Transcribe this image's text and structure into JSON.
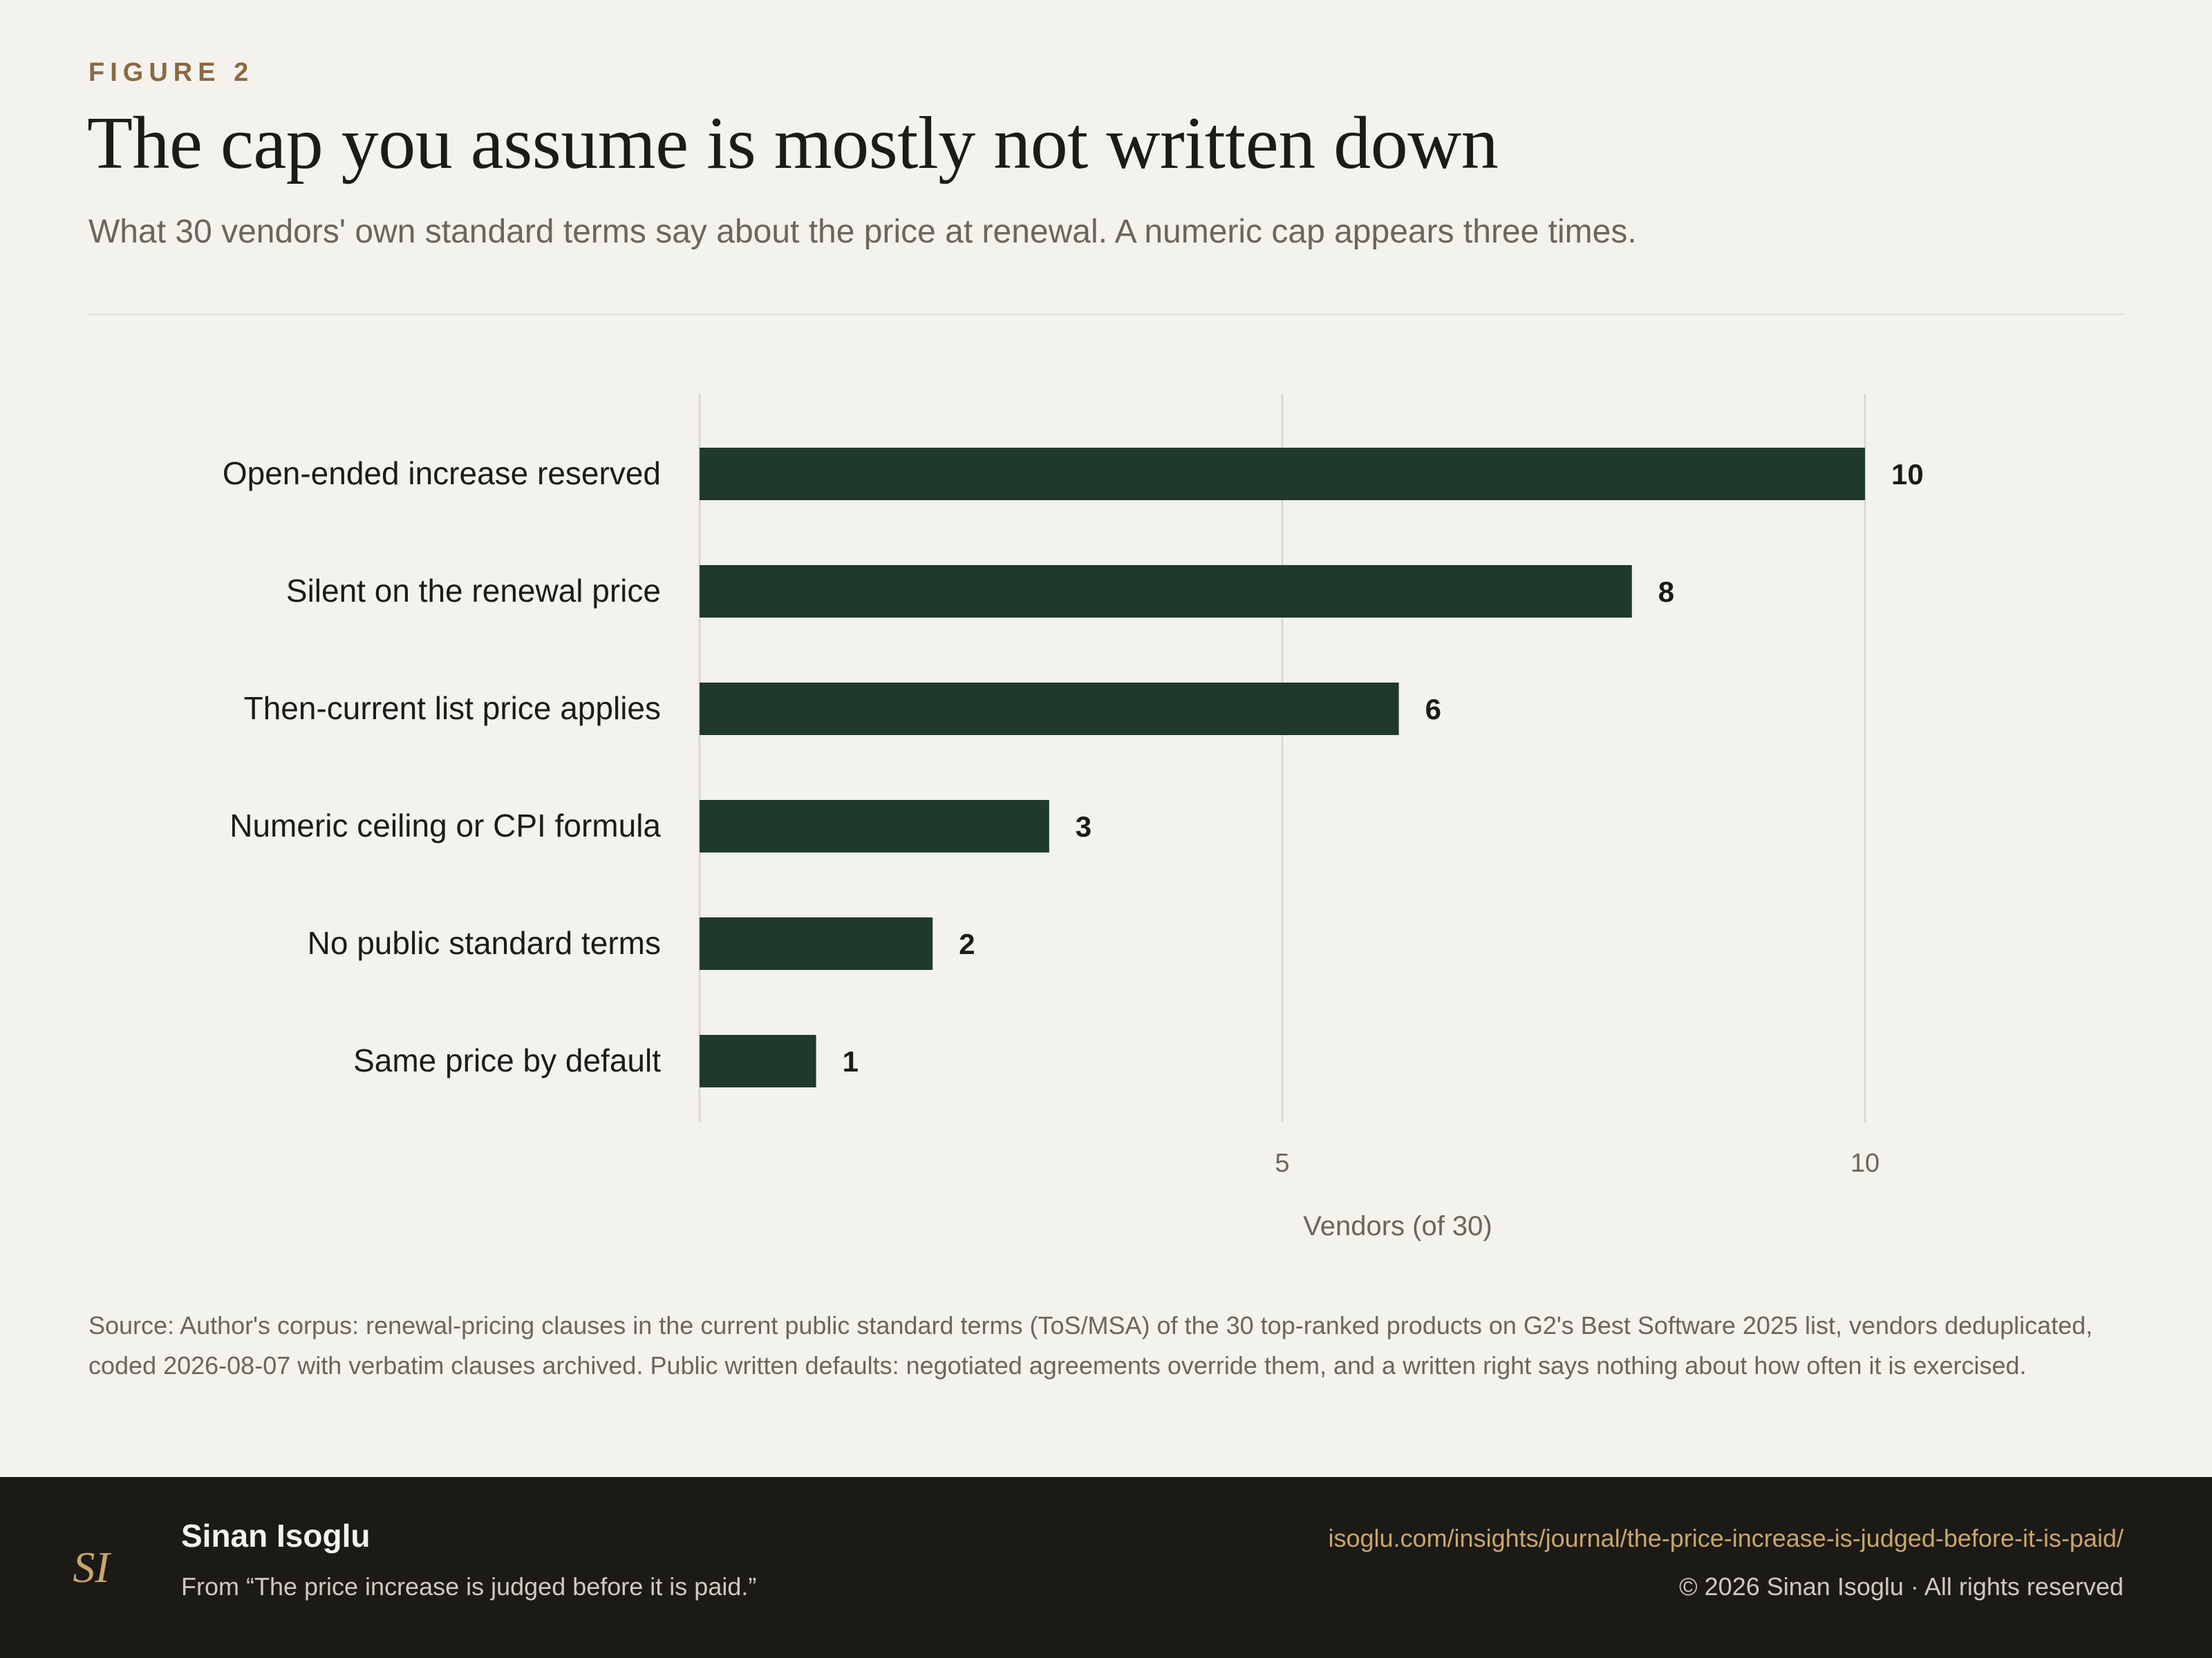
{
  "header": {
    "eyebrow": "FIGURE 2",
    "title": "The cap you assume is mostly not written down",
    "subtitle": "What 30 vendors' own standard terms say about the price at renewal. A numeric cap appears three times."
  },
  "chart_data": {
    "type": "bar",
    "orientation": "horizontal",
    "categories": [
      "Open-ended increase reserved",
      "Silent on the renewal price",
      "Then-current list price applies",
      "Numeric ceiling or CPI formula",
      "No public standard terms",
      "Same price by default"
    ],
    "values": [
      10,
      8,
      6,
      3,
      2,
      1
    ],
    "xlabel": "Vendors (of 30)",
    "ylabel": "",
    "xlim": [
      0,
      10
    ],
    "xticks": [
      5,
      10
    ],
    "xtick_labels": [
      "5",
      "10"
    ],
    "grid": "vertical",
    "data_labels": true,
    "colors": {
      "bar": "#1f3a2d",
      "grid": "#dcd9d1",
      "label": "#1c1b17",
      "tick": "#6b6659"
    }
  },
  "source": {
    "text": "Source: Author's corpus: renewal-pricing clauses in the current public standard terms (ToS/MSA) of the 30 top-ranked products on G2's Best Software 2025 list, vendors deduplicated, coded 2026-08-07 with verbatim clauses archived. Public written defaults: negotiated agreements override them, and a written right says nothing about how often it is exercised."
  },
  "footer": {
    "logo_text": "SI",
    "author": "Sinan Isoglu",
    "from": "From “The price increase is judged before it is paid.”",
    "url": "isoglu.com/insights/journal/the-price-increase-is-judged-before-it-is-paid/",
    "copyright": "© 2026 Sinan Isoglu · All rights reserved"
  }
}
